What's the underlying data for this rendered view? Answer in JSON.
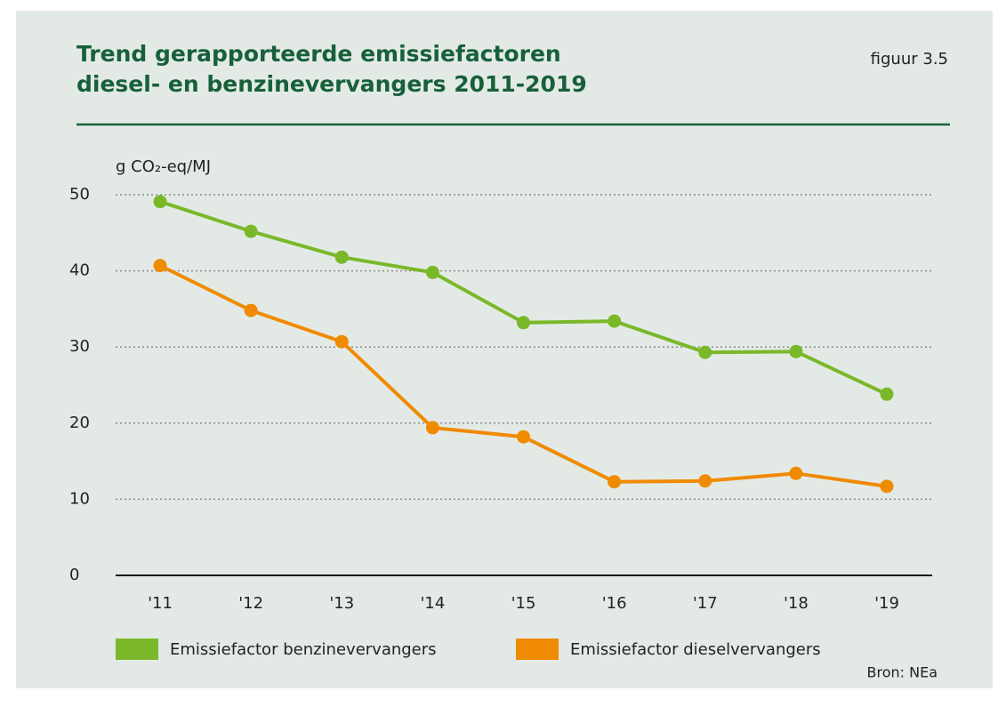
{
  "chart_data": {
    "type": "line",
    "title": [
      "Trend gerapporteerde emissiefactoren",
      "diesel- en benzinevervangers 2011-2019"
    ],
    "figure_label": "figuur 3.5",
    "ylabel": "g CO₂-eq/MJ",
    "source": "Bron: NEa",
    "categories": [
      "'11",
      "'12",
      "'13",
      "'14",
      "'15",
      "'16",
      "'17",
      "'18",
      "'19"
    ],
    "series": [
      {
        "name": "Emissiefactor benzinevervangers",
        "color": "#7ab829",
        "values": [
          49.1,
          45.2,
          41.8,
          39.8,
          33.2,
          33.4,
          29.3,
          29.4,
          23.8
        ]
      },
      {
        "name": "Emissiefactor dieselvervangers",
        "color": "#f08a00",
        "values": [
          40.7,
          34.8,
          30.7,
          19.4,
          18.2,
          12.3,
          12.4,
          13.4,
          11.7
        ]
      }
    ],
    "ylim": [
      0,
      50
    ],
    "yticks": [
      0,
      10,
      20,
      30,
      40,
      50
    ],
    "grid": true
  }
}
